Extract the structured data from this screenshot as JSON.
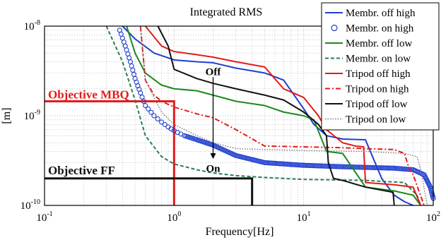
{
  "chart_data": {
    "type": "line",
    "title": "Integrated RMS",
    "xlabel": "Frequency[Hz]",
    "ylabel": "[m]",
    "xscale": "log",
    "yscale": "log",
    "xlim": [
      0.1,
      100
    ],
    "ylim": [
      1e-10,
      1e-08
    ],
    "x_ticks": [
      {
        "base": "10",
        "exp": "-1",
        "value": 0.1
      },
      {
        "base": "10",
        "exp": "0",
        "value": 1
      },
      {
        "base": "10",
        "exp": "1",
        "value": 10
      },
      {
        "base": "10",
        "exp": "2",
        "value": 100
      }
    ],
    "y_ticks": [
      {
        "base": "10",
        "exp": "-10",
        "value": 1e-10
      },
      {
        "base": "10",
        "exp": "-9",
        "value": 1e-09
      },
      {
        "base": "10",
        "exp": "-8",
        "value": 1e-08
      }
    ],
    "grid": true,
    "legend_position": "top-right",
    "series": [
      {
        "name": "Membr. off high",
        "color": "#1f3fcf",
        "style": "solid",
        "x": [
          0.4,
          0.5,
          0.7,
          1.0,
          1.5,
          2.0,
          3.0,
          5.0,
          7.0,
          10.0,
          12.0,
          15.0,
          20.0,
          30.0,
          40.0,
          50.0,
          60.0,
          70.0
        ],
        "y": [
          1e-08,
          7.2e-09,
          5e-09,
          4.2e-09,
          4e-09,
          3.9e-09,
          3.4e-09,
          3e-09,
          2.5e-09,
          1.2e-09,
          8e-10,
          6e-10,
          5.5e-10,
          5.4e-10,
          2e-10,
          1.3e-10,
          1.1e-10,
          1e-10
        ]
      },
      {
        "name": "Membr. on high",
        "color": "#1f3fcf",
        "style": "circles",
        "x": [
          0.38,
          0.42,
          0.46,
          0.5,
          0.55,
          0.6,
          0.7,
          0.8,
          0.9,
          1.0,
          1.2,
          1.5,
          2.0,
          3.0,
          5.0,
          10.0,
          20.0,
          50.0,
          70.0,
          85.0,
          95.0,
          100.0
        ],
        "y": [
          9e-09,
          6e-09,
          4e-09,
          2.6e-09,
          1.8e-09,
          1.3e-09,
          1e-09,
          8.5e-10,
          7.5e-10,
          6.8e-10,
          6e-10,
          5.4e-10,
          4.7e-10,
          3.6e-10,
          3e-10,
          2.8e-10,
          2.7e-10,
          2.6e-10,
          2.5e-10,
          2.2e-10,
          1.6e-10,
          1.2e-10
        ]
      },
      {
        "name": "Membr. off low",
        "color": "#1a8a1a",
        "style": "solid",
        "x": [
          0.43,
          0.5,
          0.6,
          0.8,
          1.0,
          1.5,
          2.0,
          3.0,
          5.0,
          7.0,
          10.0,
          12.0,
          15.0,
          20.0,
          30.0,
          50.0,
          70.0,
          80.0
        ],
        "y": [
          1e-08,
          5e-09,
          3e-09,
          2.2e-09,
          2e-09,
          1.9e-09,
          1.7e-09,
          1.45e-09,
          1.3e-09,
          1.1e-09,
          1e-09,
          9e-10,
          4e-10,
          3.8e-10,
          1.6e-10,
          1.45e-10,
          1.3e-10,
          1e-10
        ]
      },
      {
        "name": "Membr. on low",
        "color": "#2e7d50",
        "style": "dashed",
        "x": [
          0.3,
          0.4,
          0.5,
          0.6,
          0.8,
          1.0,
          1.5,
          2.0,
          3.0,
          5.0,
          10.0,
          30.0,
          60.0,
          75.0,
          80.0
        ],
        "y": [
          1e-08,
          4e-09,
          1.5e-09,
          6e-10,
          3.5e-10,
          2.9e-10,
          2.5e-10,
          2.3e-10,
          2.15e-10,
          2.05e-10,
          1.95e-10,
          1.9e-10,
          1.8e-10,
          1.3e-10,
          1e-10
        ]
      },
      {
        "name": "Tripod off high",
        "color": "#e21b1b",
        "style": "solid",
        "x": [
          0.6,
          0.8,
          1.0,
          1.5,
          2.0,
          3.0,
          5.0,
          7.0,
          10.0,
          13.0,
          15.0,
          20.0,
          25.0,
          29.0,
          30.0,
          50.0,
          70.0,
          80.0
        ],
        "y": [
          1e-08,
          6e-09,
          5.2e-09,
          4.8e-09,
          4.5e-09,
          4e-09,
          3.5e-09,
          2e-09,
          1.6e-09,
          1e-09,
          7e-10,
          5e-10,
          4.6e-10,
          4.5e-10,
          1.8e-10,
          1.7e-10,
          1.6e-10,
          1e-10
        ]
      },
      {
        "name": "Tripod on high",
        "color": "#e21b1b",
        "style": "dashdot",
        "x": [
          0.55,
          0.6,
          0.7,
          0.8,
          1.0,
          1.5,
          2.0,
          3.0,
          5.0,
          10.0,
          20.0,
          30.0,
          50.0,
          60.0,
          65.0,
          70.0,
          85.0
        ],
        "y": [
          1e-08,
          2.5e-09,
          1.7e-09,
          1.45e-09,
          1.25e-09,
          1.05e-09,
          9.5e-10,
          7e-10,
          4.6e-10,
          4.5e-10,
          4.4e-10,
          4.3e-10,
          4.2e-10,
          3.8e-10,
          2.6e-10,
          2.2e-10,
          1e-10
        ]
      },
      {
        "name": "Tripod off low",
        "color": "#111111",
        "style": "solid",
        "x": [
          0.75,
          0.9,
          1.0,
          1.5,
          2.0,
          3.0,
          5.0,
          7.0,
          10.0,
          13.0,
          15.0,
          15.5,
          17.0,
          20.0,
          30.0,
          49.0,
          50.0
        ],
        "y": [
          1e-08,
          6e-09,
          3.3e-09,
          2.6e-09,
          2.3e-09,
          2e-09,
          1.7e-09,
          1.5e-09,
          1.1e-09,
          8e-10,
          6e-10,
          3e-10,
          2e-10,
          1.9e-10,
          1.6e-10,
          1.4e-10,
          1e-10
        ]
      },
      {
        "name": "Tripod on low",
        "color": "#777777",
        "style": "dotted",
        "x": [
          0.55,
          0.6,
          0.7,
          0.8,
          1.0,
          1.5,
          2.0,
          3.0,
          5.0,
          10.0,
          30.0,
          60.0,
          75.0,
          80.0,
          90.0
        ],
        "y": [
          1e-08,
          2.5e-09,
          1.6e-09,
          1.1e-09,
          8e-10,
          6e-10,
          5e-10,
          4.3e-10,
          4.2e-10,
          4.1e-10,
          4e-10,
          3.8e-10,
          3.5e-10,
          2.5e-10,
          1e-10
        ]
      }
    ],
    "objectives": [
      {
        "label": "Objective MBQ",
        "color": "#e21b1b",
        "x": [
          0.1,
          1.0
        ],
        "y": 1.45e-09
      },
      {
        "label": "Objective FF",
        "color": "#111111",
        "x": [
          0.1,
          4.0
        ],
        "y": 2e-10
      }
    ],
    "annotations": [
      {
        "text": "Off",
        "x": 2.0,
        "y": 3.1e-09
      },
      {
        "text": "On",
        "x": 2.0,
        "y": 2.6e-10
      }
    ],
    "arrow": {
      "x": 2.0,
      "y_from": 2.7e-09,
      "y_to": 3.3e-10
    }
  }
}
